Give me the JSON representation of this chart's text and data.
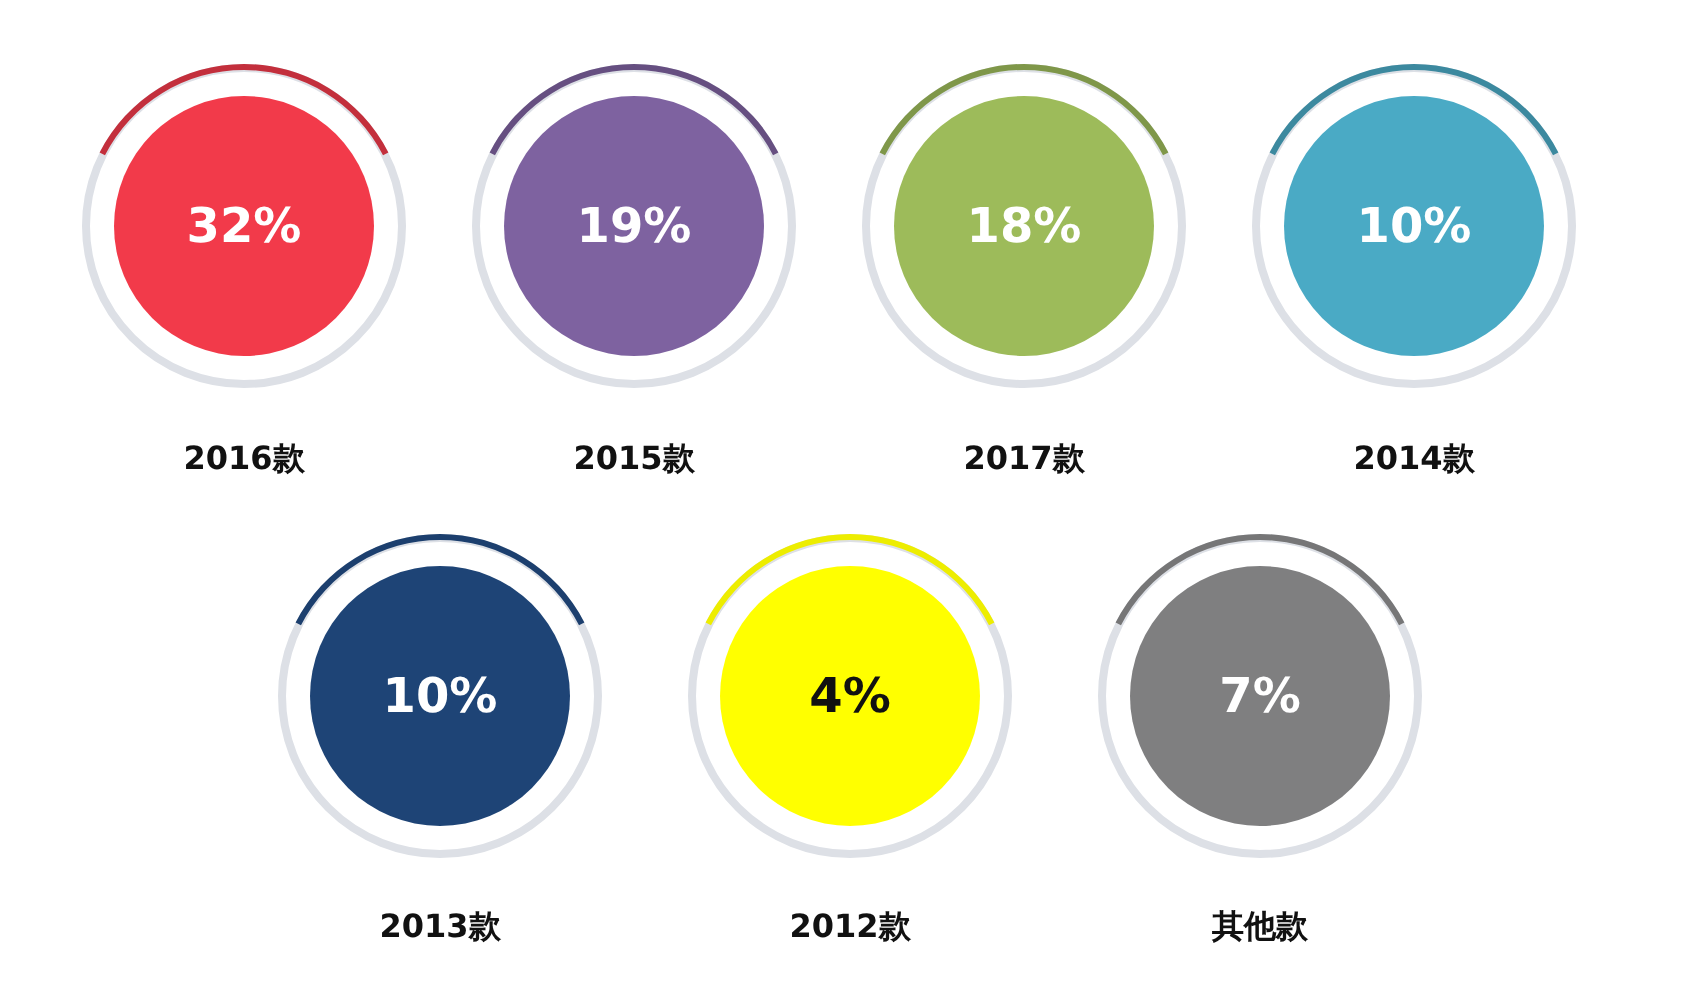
{
  "chart_data": {
    "type": "other",
    "categories": [
      "2016款",
      "2015款",
      "2017款",
      "2014款",
      "2013款",
      "2012款",
      "其他款"
    ],
    "values": [
      32,
      19,
      18,
      10,
      10,
      4,
      7
    ],
    "value_labels": [
      "32%",
      "19%",
      "18%",
      "10%",
      "10%",
      "4%",
      "7%"
    ],
    "colors": [
      "#f23a4a",
      "#7e62a0",
      "#9dbb5a",
      "#4aaac5",
      "#1e4476",
      "#ffff00",
      "#7f7f80"
    ]
  }
}
